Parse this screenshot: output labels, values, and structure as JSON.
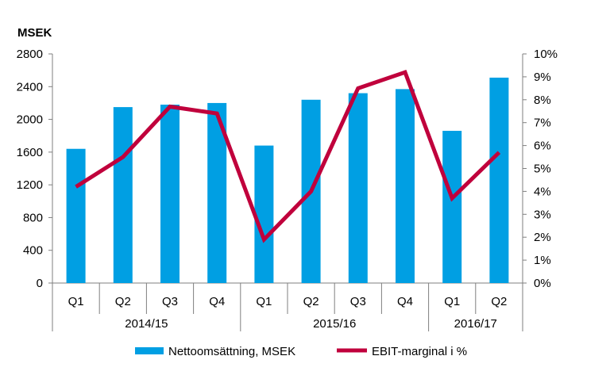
{
  "chart_data": {
    "type": "bar",
    "y_unit_label": "MSEK",
    "categories": [
      "Q1",
      "Q2",
      "Q3",
      "Q4",
      "Q1",
      "Q2",
      "Q3",
      "Q4",
      "Q1",
      "Q2"
    ],
    "groups": [
      {
        "label": "2014/15",
        "count": 4
      },
      {
        "label": "2015/16",
        "count": 4
      },
      {
        "label": "2016/17",
        "count": 2
      }
    ],
    "series": [
      {
        "name": "Nettoomsättning, MSEK",
        "type": "bar",
        "axis": "left",
        "color": "#009fe3",
        "values": [
          1640,
          2150,
          2180,
          2200,
          1680,
          2240,
          2320,
          2370,
          1860,
          2510
        ]
      },
      {
        "name": "EBIT-marginal i %",
        "type": "line",
        "axis": "right",
        "color": "#c0003c",
        "values": [
          4.2,
          5.5,
          7.7,
          7.4,
          1.9,
          4.0,
          8.5,
          9.2,
          3.7,
          5.7
        ]
      }
    ],
    "y_left": {
      "min": 0,
      "max": 2800,
      "step": 400,
      "ticks": [
        "0",
        "400",
        "800",
        "1200",
        "1600",
        "2000",
        "2400",
        "2800"
      ]
    },
    "y_right": {
      "min": 0,
      "max": 10,
      "step": 1,
      "ticks": [
        "0%",
        "1%",
        "2%",
        "3%",
        "4%",
        "5%",
        "6%",
        "7%",
        "8%",
        "9%",
        "10%"
      ]
    },
    "grid": false,
    "legend_position": "bottom"
  }
}
